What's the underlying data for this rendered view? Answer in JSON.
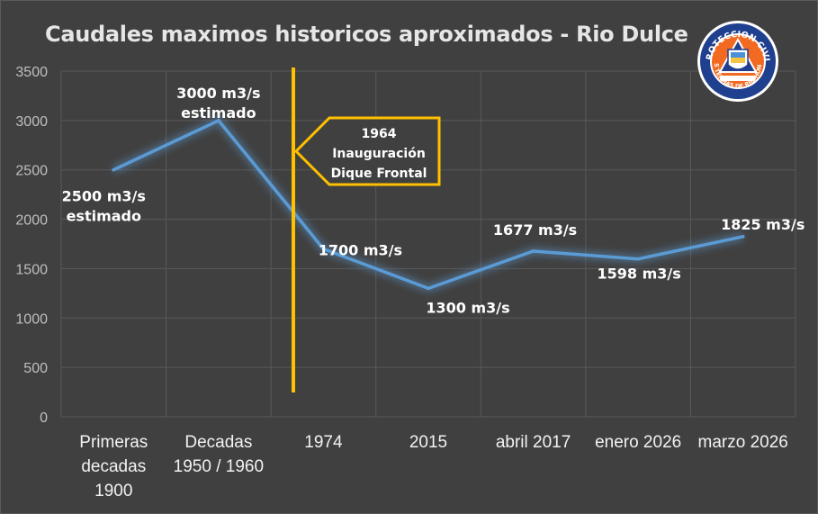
{
  "chart_data": {
    "type": "line",
    "title": "Caudales maximos historicos aproximados - Rio Dulce",
    "xlabel": "",
    "ylabel": "",
    "categories": [
      "Primeras decadas 1900",
      "Decadas 1950 / 1960",
      "1974",
      "2015",
      "abril 2017",
      "enero 2026",
      "marzo 2026"
    ],
    "category_lines": [
      [
        "Primeras",
        "decadas",
        "1900"
      ],
      [
        "Decadas",
        "1950 / 1960"
      ],
      [
        "1974"
      ],
      [
        "2015"
      ],
      [
        "abril 2017"
      ],
      [
        "enero 2026"
      ],
      [
        "marzo 2026"
      ]
    ],
    "series": [
      {
        "values": [
          2500,
          3000,
          1700,
          1300,
          1677,
          1598,
          1825
        ],
        "color": "#5b9bd5"
      }
    ],
    "data_labels": [
      [
        "2500 m3/s",
        "estimado"
      ],
      [
        "3000 m3/s",
        "estimado"
      ],
      [
        "1700 m3/s"
      ],
      [
        "1300 m3/s"
      ],
      [
        "1677 m3/s"
      ],
      [
        "1598 m3/s"
      ],
      [
        "1825 m3/s"
      ]
    ],
    "ylim": [
      0,
      3500
    ],
    "yticks": [
      "0",
      "500",
      "1000",
      "1500",
      "2000",
      "2500",
      "3000",
      "3500"
    ],
    "grid": true,
    "annotation": {
      "lines": [
        "1964",
        "Inauguración",
        "Dique Frontal"
      ],
      "color": "#ffc000"
    }
  },
  "logo": {
    "top_text": "PROTECCION CIVIL",
    "bottom_text": "LAS TERMAS DE RIO HONDO",
    "inner_text": "MUNICIPALIDAD",
    "colors": {
      "ring": "#1f3f8f",
      "fill": "#f26a21",
      "inner": "#ffffff"
    }
  },
  "colors": {
    "background": "#404040",
    "grid": "#595959",
    "line": "#5b9bd5",
    "accent": "#ffc000"
  }
}
